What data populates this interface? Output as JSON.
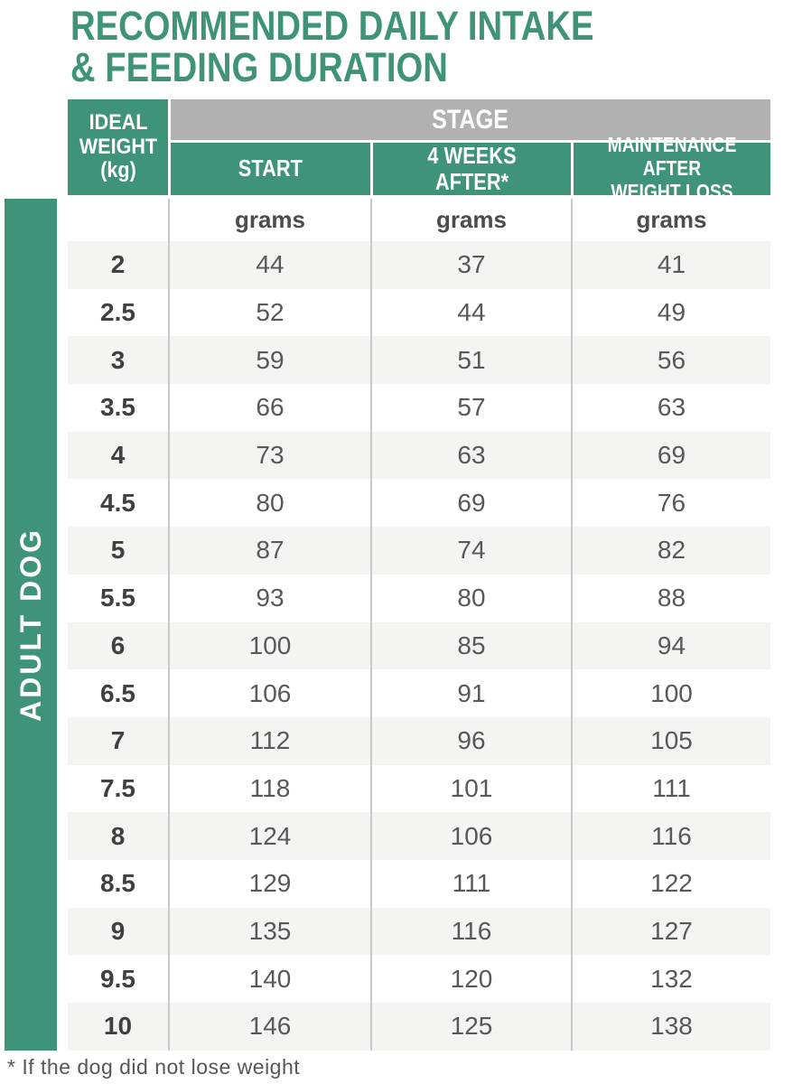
{
  "title": "RECOMMENDED DAILY INTAKE\n& FEEDING DURATION",
  "sidebar": {
    "label": "ADULT DOG"
  },
  "table": {
    "corner_header": "IDEAL\nWEIGHT\n(kg)",
    "stage_header": "STAGE",
    "columns": {
      "start": "START",
      "four_weeks": "4 WEEKS AFTER*",
      "maintenance": "MAINTENANCE AFTER\nWEIGHT LOSS"
    },
    "unit": "grams",
    "rows": [
      {
        "weight": "2",
        "start": "44",
        "four_weeks": "37",
        "maintenance": "41"
      },
      {
        "weight": "2.5",
        "start": "52",
        "four_weeks": "44",
        "maintenance": "49"
      },
      {
        "weight": "3",
        "start": "59",
        "four_weeks": "51",
        "maintenance": "56"
      },
      {
        "weight": "3.5",
        "start": "66",
        "four_weeks": "57",
        "maintenance": "63"
      },
      {
        "weight": "4",
        "start": "73",
        "four_weeks": "63",
        "maintenance": "69"
      },
      {
        "weight": "4.5",
        "start": "80",
        "four_weeks": "69",
        "maintenance": "76"
      },
      {
        "weight": "5",
        "start": "87",
        "four_weeks": "74",
        "maintenance": "82"
      },
      {
        "weight": "5.5",
        "start": "93",
        "four_weeks": "80",
        "maintenance": "88"
      },
      {
        "weight": "6",
        "start": "100",
        "four_weeks": "85",
        "maintenance": "94"
      },
      {
        "weight": "6.5",
        "start": "106",
        "four_weeks": "91",
        "maintenance": "100"
      },
      {
        "weight": "7",
        "start": "112",
        "four_weeks": "96",
        "maintenance": "105"
      },
      {
        "weight": "7.5",
        "start": "118",
        "four_weeks": "101",
        "maintenance": "111"
      },
      {
        "weight": "8",
        "start": "124",
        "four_weeks": "106",
        "maintenance": "116"
      },
      {
        "weight": "8.5",
        "start": "129",
        "four_weeks": "111",
        "maintenance": "122"
      },
      {
        "weight": "9",
        "start": "135",
        "four_weeks": "116",
        "maintenance": "127"
      },
      {
        "weight": "9.5",
        "start": "140",
        "four_weeks": "120",
        "maintenance": "132"
      },
      {
        "weight": "10",
        "start": "146",
        "four_weeks": "125",
        "maintenance": "138"
      }
    ]
  },
  "footnote": "* If the dog did not lose weight",
  "colors": {
    "green": "#3E9379",
    "stage_gray": "#B1B1B1",
    "row_alt": "#F4F4F3",
    "grid_line": "#C9C9C9",
    "number_text": "#57585B",
    "weight_text": "#3F4042"
  }
}
